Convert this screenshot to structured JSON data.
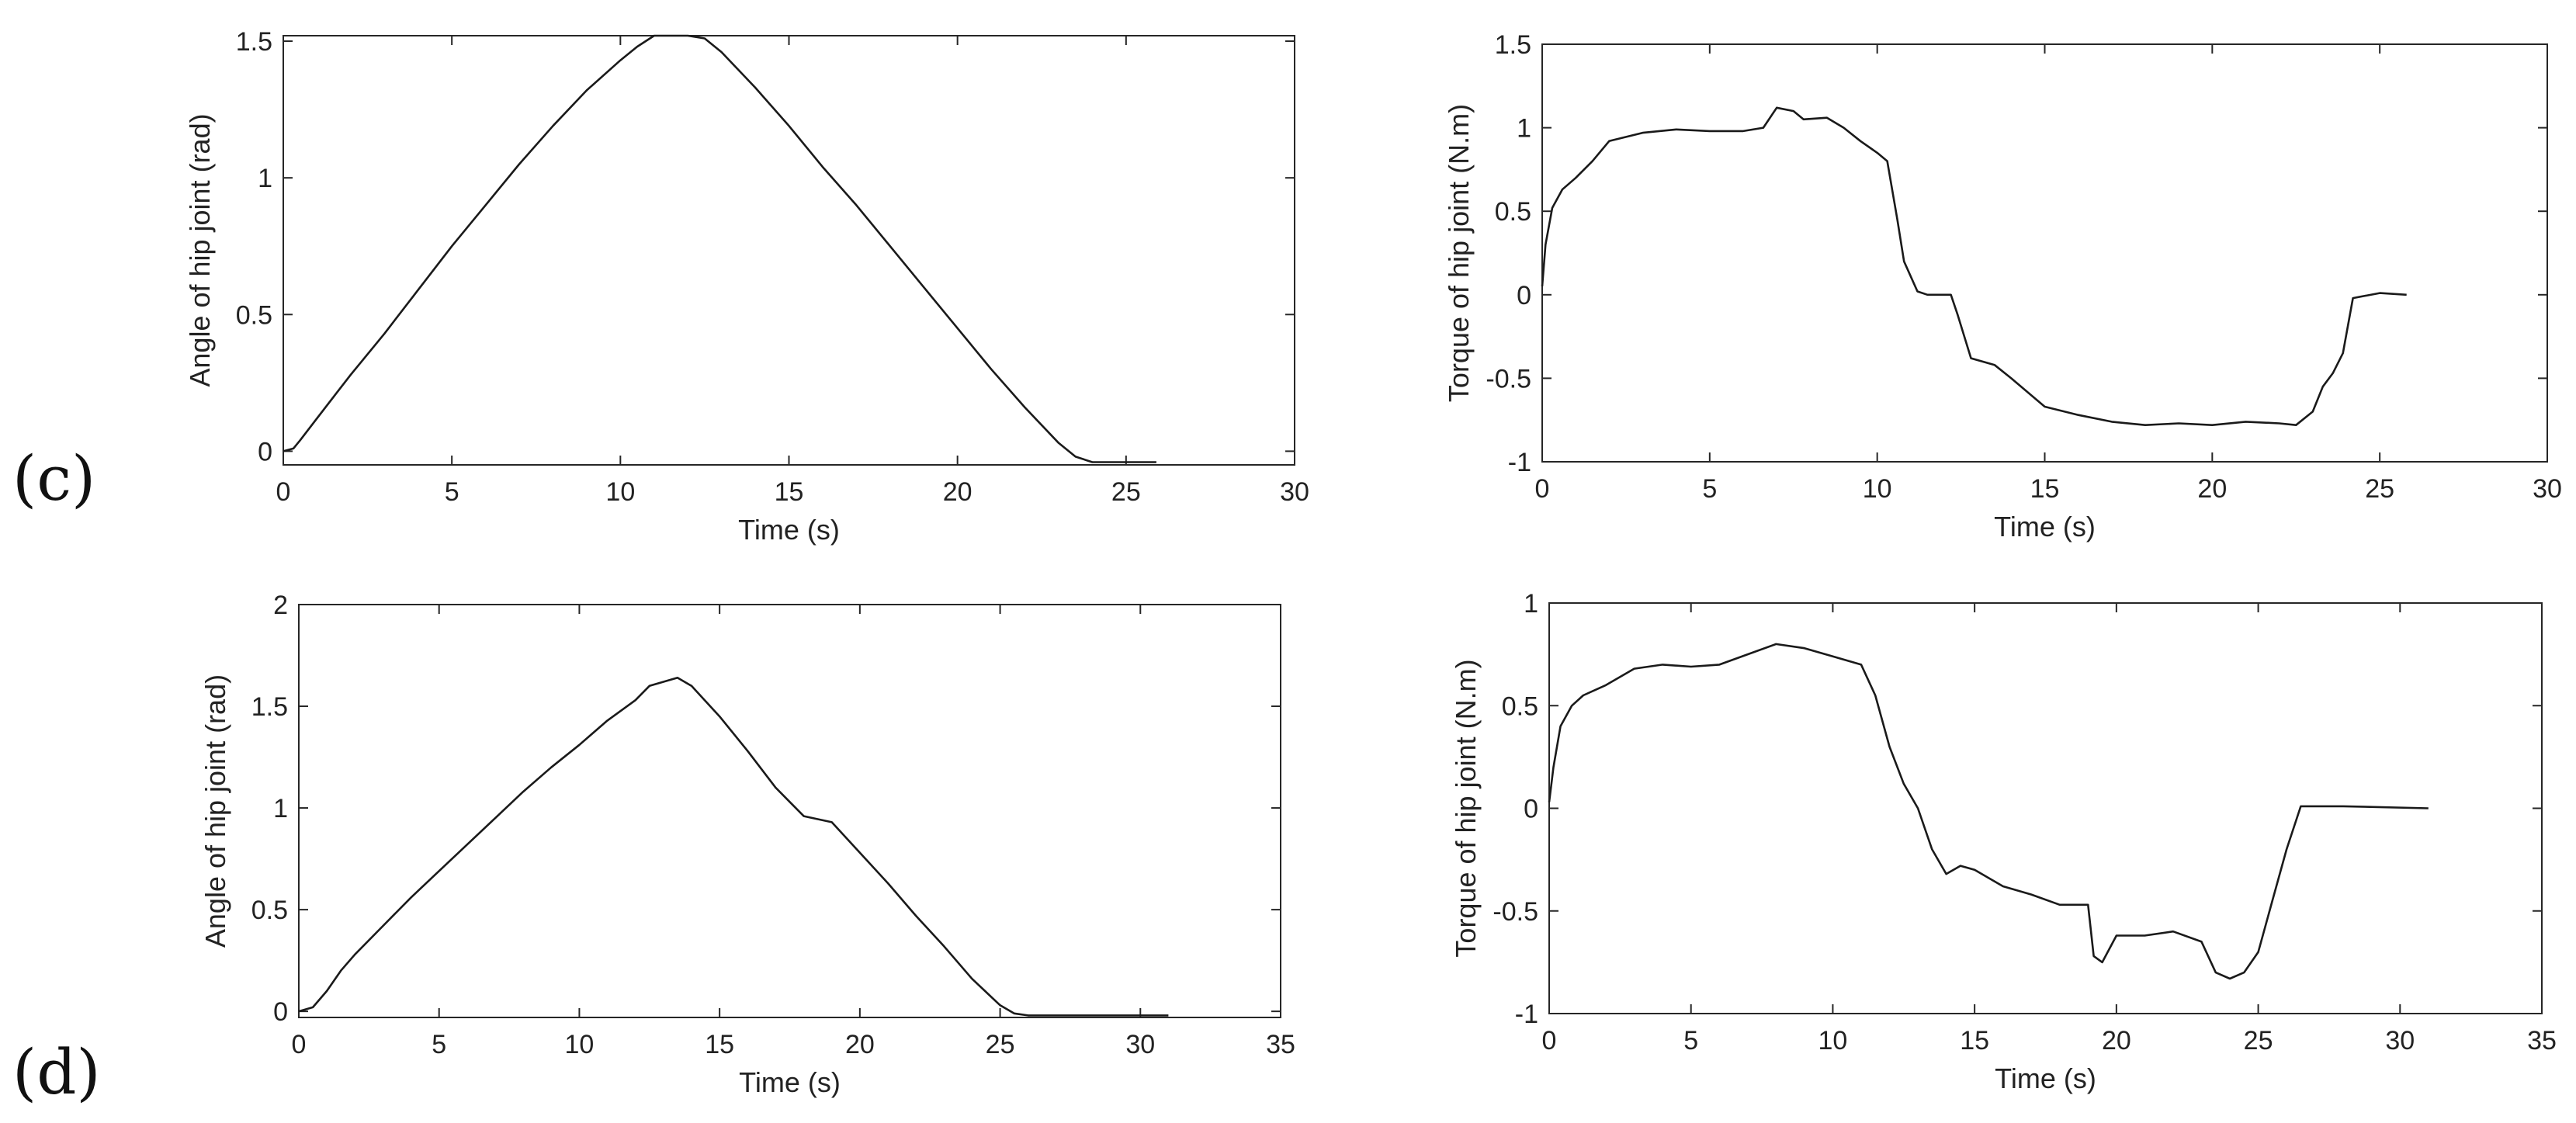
{
  "figure": {
    "row_labels": [
      "(c)",
      "(d)"
    ]
  },
  "chart_data": [
    {
      "type": "line",
      "panel": "c",
      "title": "",
      "xlabel": "Time (s)",
      "ylabel": "Angle of hip joint (rad)",
      "xlim": [
        0,
        30
      ],
      "ylim": [
        -0.05,
        1.52
      ],
      "xticks": [
        0,
        5,
        10,
        15,
        20,
        25,
        30
      ],
      "yticks": [
        0,
        0.5,
        1,
        1.5
      ],
      "ytick_labels": [
        "0",
        "0.5",
        "1",
        "1.5"
      ],
      "grid": false,
      "series": [
        {
          "color": "#1a1a1a",
          "x": [
            0,
            0.3,
            0.5,
            1,
            1.5,
            2,
            3,
            4,
            5,
            6,
            7,
            8,
            9,
            10,
            10.5,
            11,
            12,
            12.5,
            13,
            14,
            15,
            16,
            17,
            18,
            19,
            20,
            21,
            22,
            23,
            23.5,
            24,
            25,
            25.9
          ],
          "y": [
            0,
            0.01,
            0.04,
            0.12,
            0.2,
            0.28,
            0.43,
            0.59,
            0.75,
            0.9,
            1.05,
            1.19,
            1.32,
            1.43,
            1.48,
            1.52,
            1.52,
            1.51,
            1.46,
            1.33,
            1.19,
            1.04,
            0.9,
            0.75,
            0.6,
            0.45,
            0.3,
            0.16,
            0.03,
            -0.02,
            -0.04,
            -0.04,
            -0.04
          ]
        }
      ]
    },
    {
      "type": "line",
      "panel": "c",
      "title": "",
      "xlabel": "Time (s)",
      "ylabel": "Torque of hip joint (N.m)",
      "xlim": [
        0,
        30
      ],
      "ylim": [
        -1,
        1.5
      ],
      "xticks": [
        0,
        5,
        10,
        15,
        20,
        25,
        30
      ],
      "yticks": [
        -1,
        -0.5,
        0,
        0.5,
        1,
        1.5
      ],
      "ytick_labels": [
        "-1",
        "-0.5",
        "0",
        "0.5",
        "1",
        "1.5"
      ],
      "grid": false,
      "series": [
        {
          "color": "#1a1a1a",
          "x": [
            0,
            0.1,
            0.3,
            0.6,
            1,
            1.5,
            2,
            3,
            4,
            5,
            6,
            6.6,
            7,
            7.5,
            7.8,
            8.5,
            9,
            9.5,
            10,
            10.3,
            10.6,
            10.8,
            11.2,
            11.5,
            12.2,
            12.4,
            12.8,
            13.5,
            14,
            15,
            16,
            17,
            18,
            19,
            20,
            21,
            22,
            22.5,
            23,
            23.3,
            23.6,
            23.9,
            24.2,
            25,
            25.8
          ],
          "y": [
            0.05,
            0.3,
            0.52,
            0.63,
            0.7,
            0.8,
            0.92,
            0.97,
            0.99,
            0.98,
            0.98,
            1.0,
            1.12,
            1.1,
            1.05,
            1.06,
            1.0,
            0.92,
            0.85,
            0.8,
            0.45,
            0.2,
            0.02,
            0.0,
            0.0,
            -0.12,
            -0.38,
            -0.42,
            -0.5,
            -0.67,
            -0.72,
            -0.76,
            -0.78,
            -0.77,
            -0.78,
            -0.76,
            -0.77,
            -0.78,
            -0.7,
            -0.55,
            -0.47,
            -0.35,
            -0.02,
            0.01,
            0.0
          ]
        }
      ]
    },
    {
      "type": "line",
      "panel": "d",
      "title": "",
      "xlabel": "Time (s)",
      "ylabel": "Angle of hip joint (rad)",
      "xlim": [
        0,
        35
      ],
      "ylim": [
        -0.03,
        2
      ],
      "xticks": [
        0,
        5,
        10,
        15,
        20,
        25,
        30,
        35
      ],
      "yticks": [
        0,
        0.5,
        1,
        1.5,
        2
      ],
      "ytick_labels": [
        "0",
        "0.5",
        "1",
        "1.5",
        "2"
      ],
      "grid": false,
      "series": [
        {
          "color": "#1a1a1a",
          "x": [
            0,
            0.5,
            1,
            1.5,
            2,
            3,
            4,
            5,
            6,
            7,
            8,
            9,
            10,
            11,
            12,
            12.5,
            13.5,
            14,
            15,
            16,
            17,
            18,
            19,
            20,
            21,
            22,
            23,
            24,
            25,
            25.5,
            26,
            27,
            31
          ],
          "y": [
            0,
            0.02,
            0.1,
            0.2,
            0.28,
            0.42,
            0.56,
            0.69,
            0.82,
            0.95,
            1.08,
            1.2,
            1.31,
            1.43,
            1.53,
            1.6,
            1.64,
            1.6,
            1.45,
            1.28,
            1.1,
            0.96,
            0.93,
            0.78,
            0.63,
            0.47,
            0.32,
            0.16,
            0.03,
            -0.01,
            -0.02,
            -0.02,
            -0.02
          ]
        }
      ]
    },
    {
      "type": "line",
      "panel": "d",
      "title": "",
      "xlabel": "Time (s)",
      "ylabel": "Torque of hip joint (N.m)",
      "xlim": [
        0,
        35
      ],
      "ylim": [
        -1,
        1
      ],
      "xticks": [
        0,
        5,
        10,
        15,
        20,
        25,
        30,
        35
      ],
      "yticks": [
        -1,
        -0.5,
        0,
        0.5,
        1
      ],
      "ytick_labels": [
        "-1",
        "-0.5",
        "0",
        "0.5",
        "1"
      ],
      "grid": false,
      "series": [
        {
          "color": "#1a1a1a",
          "x": [
            0,
            0.15,
            0.4,
            0.8,
            1.2,
            2,
            3,
            4,
            5,
            6,
            7,
            8,
            9,
            10,
            11,
            11.5,
            12,
            12.5,
            13,
            13.5,
            14,
            14.5,
            15,
            16,
            17,
            18,
            19,
            19.2,
            19.5,
            20,
            21,
            22,
            23,
            23.5,
            24,
            24.5,
            25,
            25.5,
            26,
            26.5,
            28,
            31
          ],
          "y": [
            0.03,
            0.2,
            0.4,
            0.5,
            0.55,
            0.6,
            0.68,
            0.7,
            0.69,
            0.7,
            0.75,
            0.8,
            0.78,
            0.74,
            0.7,
            0.55,
            0.3,
            0.12,
            0.0,
            -0.2,
            -0.32,
            -0.28,
            -0.3,
            -0.38,
            -0.42,
            -0.47,
            -0.47,
            -0.72,
            -0.75,
            -0.62,
            -0.62,
            -0.6,
            -0.65,
            -0.8,
            -0.83,
            -0.8,
            -0.7,
            -0.45,
            -0.2,
            0.01,
            0.01,
            0.0
          ]
        }
      ]
    }
  ]
}
